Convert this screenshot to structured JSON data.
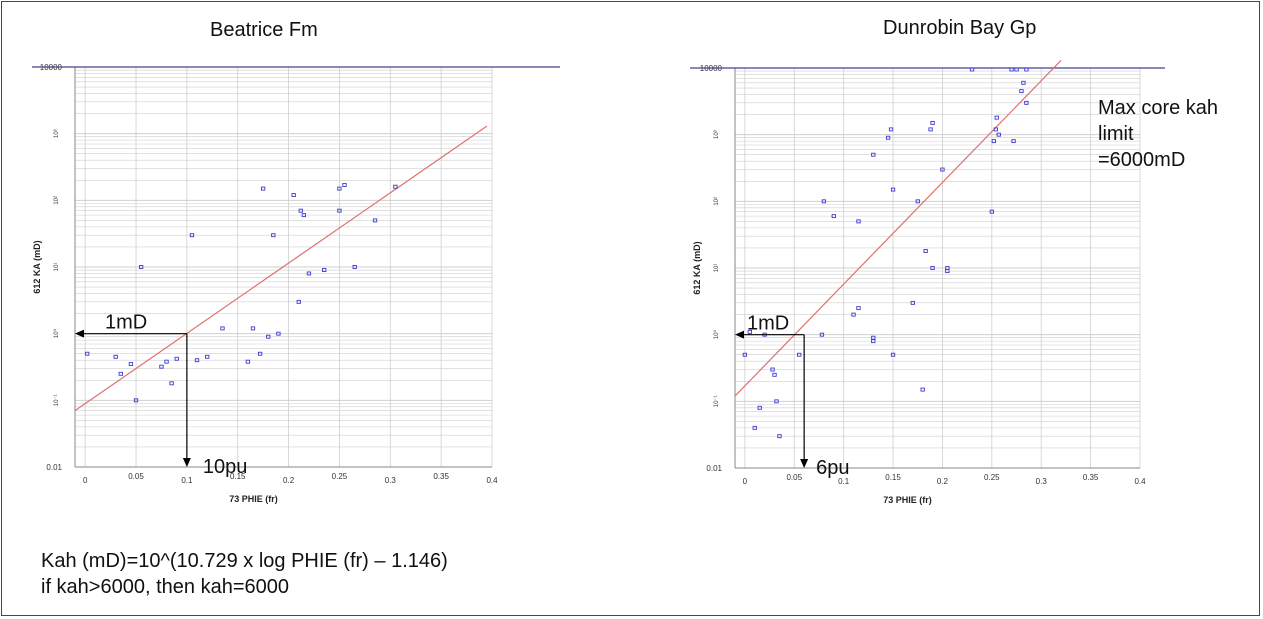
{
  "colors": {
    "points": "#3a3ad0",
    "fit_line": "#e07070",
    "max_line": "#404090",
    "grid": "#cfcfcf",
    "frame": "#7a2a5a",
    "arrows": "#000000"
  },
  "footer": {
    "formula": "Kah (mD)=10^(10.729 x log PHIE (fr) – 1.146)",
    "rule": "if kah>6000, then kah=6000"
  },
  "chart_data": [
    {
      "type": "scatter",
      "title": "Beatrice Fm",
      "xlabel": "73 PHIE (fr)",
      "ylabel": "612 KA (mD)",
      "xlim": [
        -0.01,
        0.4
      ],
      "ylim": [
        0.01,
        10000
      ],
      "y_scale": "log",
      "grid": true,
      "x_ticks": [
        "0",
        "0.05",
        "0.1",
        "0.15",
        "0.2",
        "0.25",
        "0.3",
        "0.35",
        "0.4"
      ],
      "y_ticks": [
        "0.01",
        "10⁻¹",
        "10⁰",
        "10¹",
        "10²",
        "10³",
        "10000"
      ],
      "points": [
        [
          0.002,
          0.5
        ],
        [
          0.03,
          0.45
        ],
        [
          0.035,
          0.25
        ],
        [
          0.045,
          0.35
        ],
        [
          0.05,
          0.1
        ],
        [
          0.055,
          10
        ],
        [
          0.075,
          0.32
        ],
        [
          0.08,
          0.38
        ],
        [
          0.085,
          0.18
        ],
        [
          0.09,
          0.42
        ],
        [
          0.105,
          30
        ],
        [
          0.11,
          0.4
        ],
        [
          0.12,
          0.45
        ],
        [
          0.135,
          1.2
        ],
        [
          0.16,
          0.38
        ],
        [
          0.165,
          1.2
        ],
        [
          0.172,
          0.5
        ],
        [
          0.175,
          150
        ],
        [
          0.18,
          0.9
        ],
        [
          0.185,
          30
        ],
        [
          0.19,
          1.0
        ],
        [
          0.205,
          120
        ],
        [
          0.21,
          3
        ],
        [
          0.212,
          70
        ],
        [
          0.215,
          60
        ],
        [
          0.22,
          8
        ],
        [
          0.235,
          9
        ],
        [
          0.25,
          150
        ],
        [
          0.25,
          70
        ],
        [
          0.255,
          170
        ],
        [
          0.265,
          10
        ],
        [
          0.285,
          50
        ],
        [
          0.305,
          160
        ]
      ],
      "fit_line": [
        [
          -0.01,
          0.07
        ],
        [
          0.395,
          1300
        ]
      ],
      "max_line": 6000,
      "annotations": {
        "k_label": "1mD",
        "k_value": 1,
        "phi_label": "10pu",
        "phi_value": 0.1
      }
    },
    {
      "type": "scatter",
      "title": "Dunrobin Bay Gp",
      "xlabel": "73 PHIE (fr)",
      "ylabel": "612 KA (mD)",
      "xlim": [
        -0.01,
        0.4
      ],
      "ylim": [
        0.01,
        10000
      ],
      "y_scale": "log",
      "grid": true,
      "x_ticks": [
        "0",
        "0.05",
        "0.1",
        "0.15",
        "0.2",
        "0.25",
        "0.3",
        "0.35",
        "0.4"
      ],
      "y_ticks": [
        "0.01",
        "10⁻¹",
        "10⁰",
        "10¹",
        "10²",
        "10³",
        "10000"
      ],
      "points": [
        [
          0.0,
          0.5
        ],
        [
          0.005,
          1.1
        ],
        [
          0.01,
          0.04
        ],
        [
          0.015,
          0.08
        ],
        [
          0.02,
          1.0
        ],
        [
          0.028,
          0.3
        ],
        [
          0.03,
          0.25
        ],
        [
          0.032,
          0.1
        ],
        [
          0.035,
          0.03
        ],
        [
          0.055,
          0.5
        ],
        [
          0.078,
          1.0
        ],
        [
          0.08,
          100
        ],
        [
          0.09,
          60
        ],
        [
          0.11,
          2
        ],
        [
          0.115,
          2.5
        ],
        [
          0.115,
          50
        ],
        [
          0.13,
          0.9
        ],
        [
          0.13,
          0.8
        ],
        [
          0.13,
          500
        ],
        [
          0.145,
          900
        ],
        [
          0.148,
          1200
        ],
        [
          0.15,
          150
        ],
        [
          0.15,
          0.5
        ],
        [
          0.17,
          3
        ],
        [
          0.175,
          100
        ],
        [
          0.18,
          0.15
        ],
        [
          0.183,
          18
        ],
        [
          0.188,
          1200
        ],
        [
          0.19,
          10
        ],
        [
          0.19,
          1500
        ],
        [
          0.2,
          300
        ],
        [
          0.205,
          10
        ],
        [
          0.205,
          9
        ],
        [
          0.23,
          9500
        ],
        [
          0.25,
          70
        ],
        [
          0.252,
          800
        ],
        [
          0.254,
          1200
        ],
        [
          0.255,
          1800
        ],
        [
          0.257,
          1000
        ],
        [
          0.27,
          9500
        ],
        [
          0.272,
          800
        ],
        [
          0.275,
          9500
        ],
        [
          0.28,
          4500
        ],
        [
          0.282,
          6000
        ],
        [
          0.285,
          9500
        ],
        [
          0.285,
          3000
        ]
      ],
      "fit_line": [
        [
          -0.01,
          0.12
        ],
        [
          0.32,
          13000
        ]
      ],
      "max_line": 6000,
      "annotations": {
        "k_label": "1mD",
        "k_value": 1,
        "phi_label": "6pu",
        "phi_value": 0.06,
        "max_note": [
          "Max core kah",
          "limit",
          "=6000mD"
        ]
      }
    }
  ]
}
